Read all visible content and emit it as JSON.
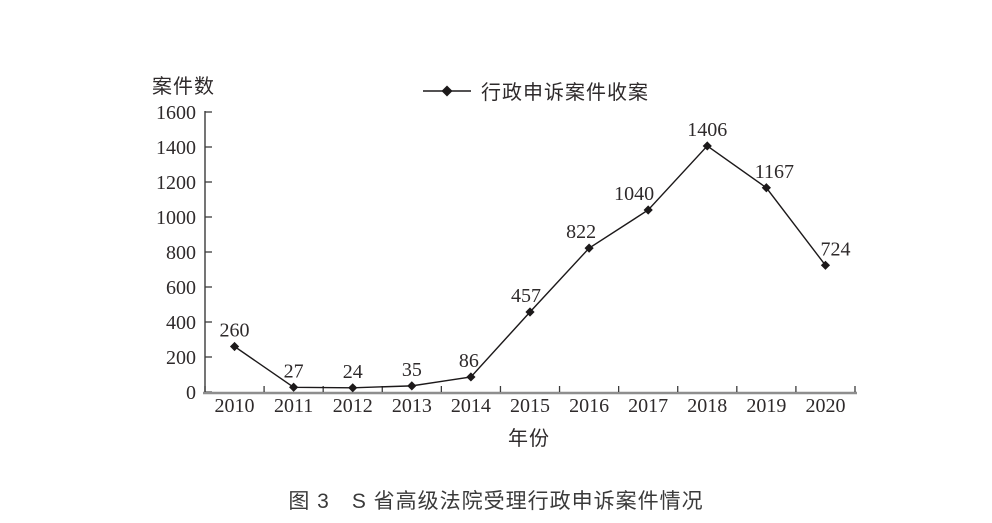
{
  "chart_data": {
    "type": "line",
    "title": "图 3　S 省高级法院受理行政申诉案件情况",
    "ylabel": "案件数",
    "xlabel": "年份",
    "categories": [
      "2010",
      "2011",
      "2012",
      "2013",
      "2014",
      "2015",
      "2016",
      "2017",
      "2018",
      "2019",
      "2020"
    ],
    "series": [
      {
        "name": "行政申诉案件收案",
        "marker": "diamond",
        "values": [
          260,
          27,
          24,
          35,
          86,
          457,
          822,
          1040,
          1406,
          1167,
          724
        ]
      }
    ],
    "ylim": [
      0,
      1600
    ],
    "yticks": [
      0,
      200,
      400,
      600,
      800,
      1000,
      1200,
      1400,
      1600
    ],
    "grid": false,
    "legend_position": "top-center",
    "data_labels": true
  },
  "colors": {
    "series_line": "#1c191a",
    "marker_fill": "#1c191a",
    "y_axis_line": "#3b3b3b",
    "x_axis_line": "#8e8e8e",
    "tick_mark": "#3b3b3b",
    "text": "#2e2a2b",
    "background": "#ffffff"
  }
}
